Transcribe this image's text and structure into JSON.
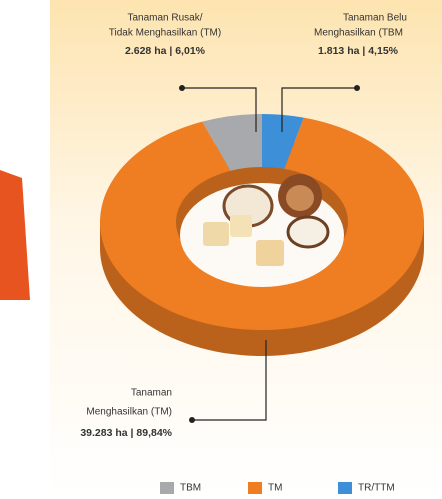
{
  "chart_data": {
    "type": "pie",
    "categories": [
      "TBM",
      "TM",
      "TR/TTM"
    ],
    "values": [
      6.01,
      89.84,
      4.15
    ],
    "value_labels": [
      "2.628 ha | 6,01%",
      "39.283 ha | 89,84%",
      "1.813 ha | 4,15%"
    ],
    "descriptions": [
      [
        "Tanaman Rusak/",
        "Tidak Menghasilkan (TM)"
      ],
      [
        "Tanaman",
        "Menghasilkan (TM)"
      ],
      [
        "Tanaman Belu",
        "Menghasilkan (TBM"
      ]
    ],
    "colors": [
      "#a7a9ac",
      "#ef7d22",
      "#3d8fd8"
    ],
    "donut": true,
    "legend": "bottom"
  }
}
